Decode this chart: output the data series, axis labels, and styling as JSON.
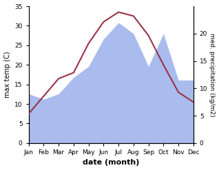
{
  "months": [
    "Jan",
    "Feb",
    "Mar",
    "Apr",
    "May",
    "Jun",
    "Jul",
    "Aug",
    "Sep",
    "Oct",
    "Nov",
    "Dec"
  ],
  "temp": [
    7.5,
    12.0,
    16.5,
    18.0,
    25.5,
    31.0,
    33.5,
    32.5,
    27.5,
    20.0,
    13.0,
    10.5
  ],
  "precip": [
    9.0,
    8.0,
    9.0,
    12.0,
    14.0,
    19.0,
    22.0,
    20.0,
    14.0,
    20.0,
    11.5,
    11.5
  ],
  "temp_color": "#993344",
  "precip_fill_color": "#aabbee",
  "xlabel": "date (month)",
  "ylabel_left": "max temp (C)",
  "ylabel_right": "med. precipitation (kg/m2)",
  "ylim_left": [
    0,
    35
  ],
  "ylim_right": [
    0,
    25
  ],
  "yticks_left": [
    0,
    5,
    10,
    15,
    20,
    25,
    30,
    35
  ],
  "yticks_right": [
    0,
    5,
    10,
    15,
    20
  ],
  "bg_color": "#ffffff"
}
